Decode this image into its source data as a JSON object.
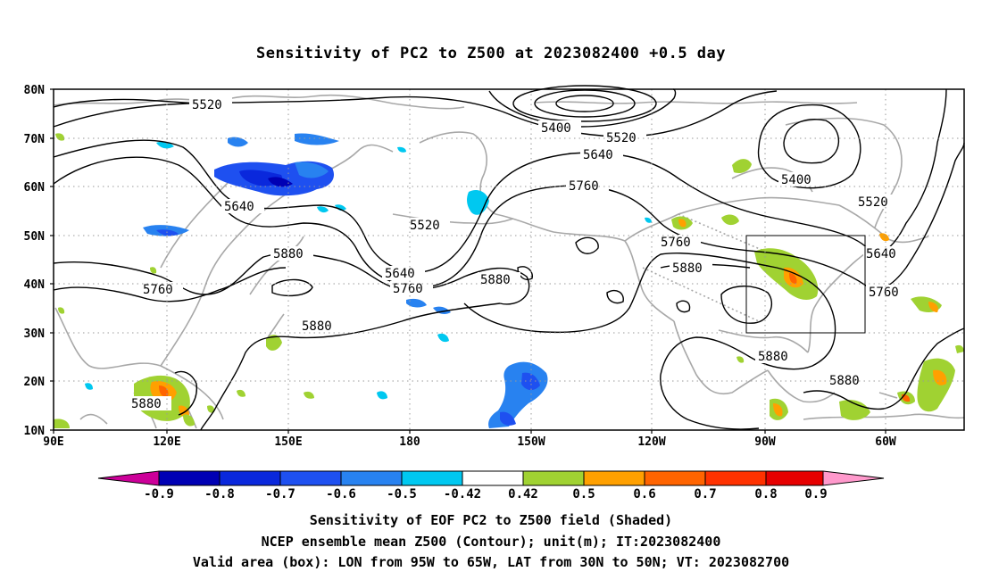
{
  "title": "Sensitivity of PC2 to Z500 at 2023082400 +0.5 day",
  "lat_labels": [
    "80N",
    "70N",
    "60N",
    "50N",
    "40N",
    "30N",
    "20N",
    "10N"
  ],
  "lon_labels": [
    "90E",
    "120E",
    "150E",
    "180",
    "150W",
    "120W",
    "90W",
    "60W"
  ],
  "contours": {
    "color": "#000000",
    "labels": [
      "5520",
      "5400",
      "5520",
      "5640",
      "5760",
      "5640",
      "5520",
      "5400",
      "5520",
      "5640",
      "5880",
      "5760",
      "5640",
      "5760",
      "5880",
      "5760",
      "5880",
      "5880",
      "5760",
      "5880",
      "5880",
      "5880"
    ]
  },
  "colorbar": {
    "labels": [
      "-0.9",
      "-0.8",
      "-0.7",
      "-0.6",
      "-0.5",
      "-0.42",
      "0.42",
      "0.5",
      "0.6",
      "0.7",
      "0.8",
      "0.9"
    ],
    "colors": [
      "#cc0099",
      "#0000b4",
      "#0a28dc",
      "#1e50f0",
      "#2882f0",
      "#00c8f0",
      "#ffffff",
      "#a0d232",
      "#ffa000",
      "#ff6400",
      "#ff3200",
      "#e60000",
      "#ff99cc"
    ]
  },
  "captions": {
    "line1": "Sensitivity of EOF PC2 to Z500 field (Shaded)",
    "line2": "NCEP ensemble mean Z500 (Contour); unit(m); IT:2023082400",
    "line3": "Valid area (box): LON from 95W to 65W, LAT from 30N to 50N; VT: 2023082700"
  },
  "valid_box": {
    "lon_range": [
      "95W",
      "65W"
    ],
    "lat_range": [
      "30N",
      "50N"
    ]
  }
}
